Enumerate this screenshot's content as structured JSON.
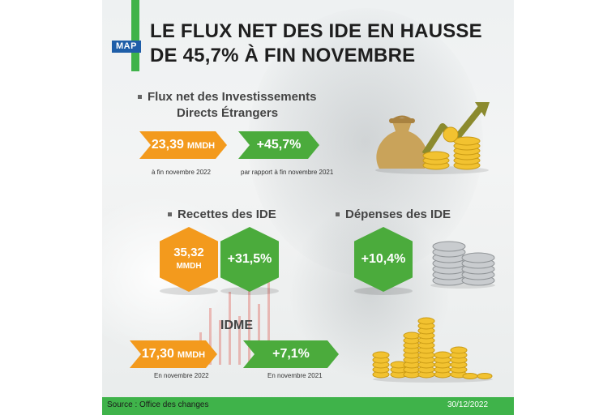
{
  "header": {
    "logo": "MAP",
    "title_line1": "LE FLUX NET DES IDE EN HAUSSE",
    "title_line2": "DE 45,7% À FIN NOVEMBRE"
  },
  "flux": {
    "label_line1": "Flux net des Investissements",
    "label_line2": "Directs Étrangers",
    "value": "23,39",
    "value_unit": "MMDH",
    "value_caption": "à fin novembre 2022",
    "change": "+45,7%",
    "change_caption": "par rapport à fin novembre 2021"
  },
  "recettes": {
    "label": "Recettes des IDE",
    "value": "35,32",
    "value_unit": "MMDH",
    "change": "+31,5%"
  },
  "depenses": {
    "label": "Dépenses des IDE",
    "change": "+10,4%"
  },
  "idme": {
    "label": "IDME",
    "value": "17,30",
    "value_unit": "MMDH",
    "value_caption": "En novembre 2022",
    "change": "+7,1%",
    "change_caption": "En novembre 2021"
  },
  "footer": {
    "source": "Source : Office des changes",
    "date": "30/12/2022"
  },
  "colors": {
    "accent_green": "#3fb34a",
    "tag_green": "#4bab3c",
    "tag_orange": "#f39a1d",
    "logo_blue": "#1f5ea8",
    "coin_gold": "#f2c230",
    "coin_silver": "#c9cccf",
    "arrow_olive": "#8b8a2e"
  },
  "icons": [
    "money-bag-icon",
    "growth-arrow-icon",
    "gold-coins-icon",
    "silver-coins-icon"
  ]
}
